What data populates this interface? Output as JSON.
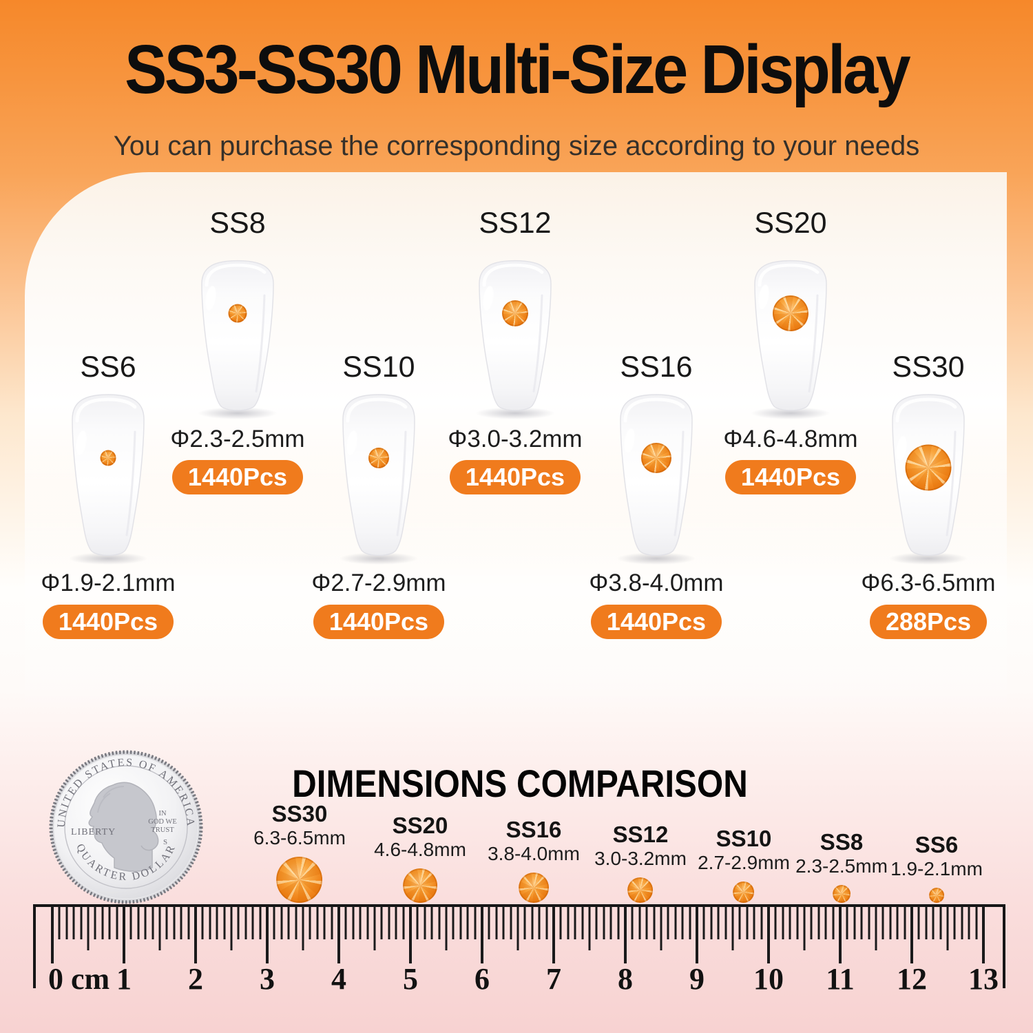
{
  "header": {
    "title": "SS3-SS30 Multi-Size Display",
    "subtitle": "You can purchase the corresponding size according to your needs"
  },
  "sizes": [
    {
      "name": "SS6",
      "diameter": "Φ1.9-2.1mm",
      "quantity": "1440Pcs"
    },
    {
      "name": "SS8",
      "diameter": "Φ2.3-2.5mm",
      "quantity": "1440Pcs"
    },
    {
      "name": "SS10",
      "diameter": "Φ2.7-2.9mm",
      "quantity": "1440Pcs"
    },
    {
      "name": "SS12",
      "diameter": "Φ3.0-3.2mm",
      "quantity": "1440Pcs"
    },
    {
      "name": "SS16",
      "diameter": "Φ3.8-4.0mm",
      "quantity": "1440Pcs"
    },
    {
      "name": "SS20",
      "diameter": "Φ4.6-4.8mm",
      "quantity": "1440Pcs"
    },
    {
      "name": "SS30",
      "diameter": "Φ6.3-6.5mm",
      "quantity": "288Pcs"
    }
  ],
  "comparison": {
    "title": "DIMENSIONS COMPARISON",
    "coin": {
      "top_text": "UNITED STATES OF AMERICA",
      "bottom_text": "QUARTER DOLLAR",
      "left_text": "LIBERTY",
      "motto_line1": "IN",
      "motto_line2": "GOD WE",
      "motto_line3": "TRUST",
      "mint_mark": "S"
    },
    "dots": [
      {
        "name": "SS30",
        "range": "6.3-6.5mm"
      },
      {
        "name": "SS20",
        "range": "4.6-4.8mm"
      },
      {
        "name": "SS16",
        "range": "3.8-4.0mm"
      },
      {
        "name": "SS12",
        "range": "3.0-3.2mm"
      },
      {
        "name": "SS10",
        "range": "2.7-2.9mm"
      },
      {
        "name": "SS8",
        "range": "2.3-2.5mm"
      },
      {
        "name": "SS6",
        "range": "1.9-2.1mm"
      }
    ],
    "ruler": {
      "zero_label": "0 cm",
      "numbers": [
        "1",
        "2",
        "3",
        "4",
        "5",
        "6",
        "7",
        "8",
        "9",
        "10",
        "11",
        "12",
        "13"
      ]
    }
  },
  "colors": {
    "accent_badge": "#f07b1d",
    "stone_orange": "#f1861c",
    "header_orange_top": "#f6882a",
    "bottom_pink": "#f7d2d1"
  }
}
